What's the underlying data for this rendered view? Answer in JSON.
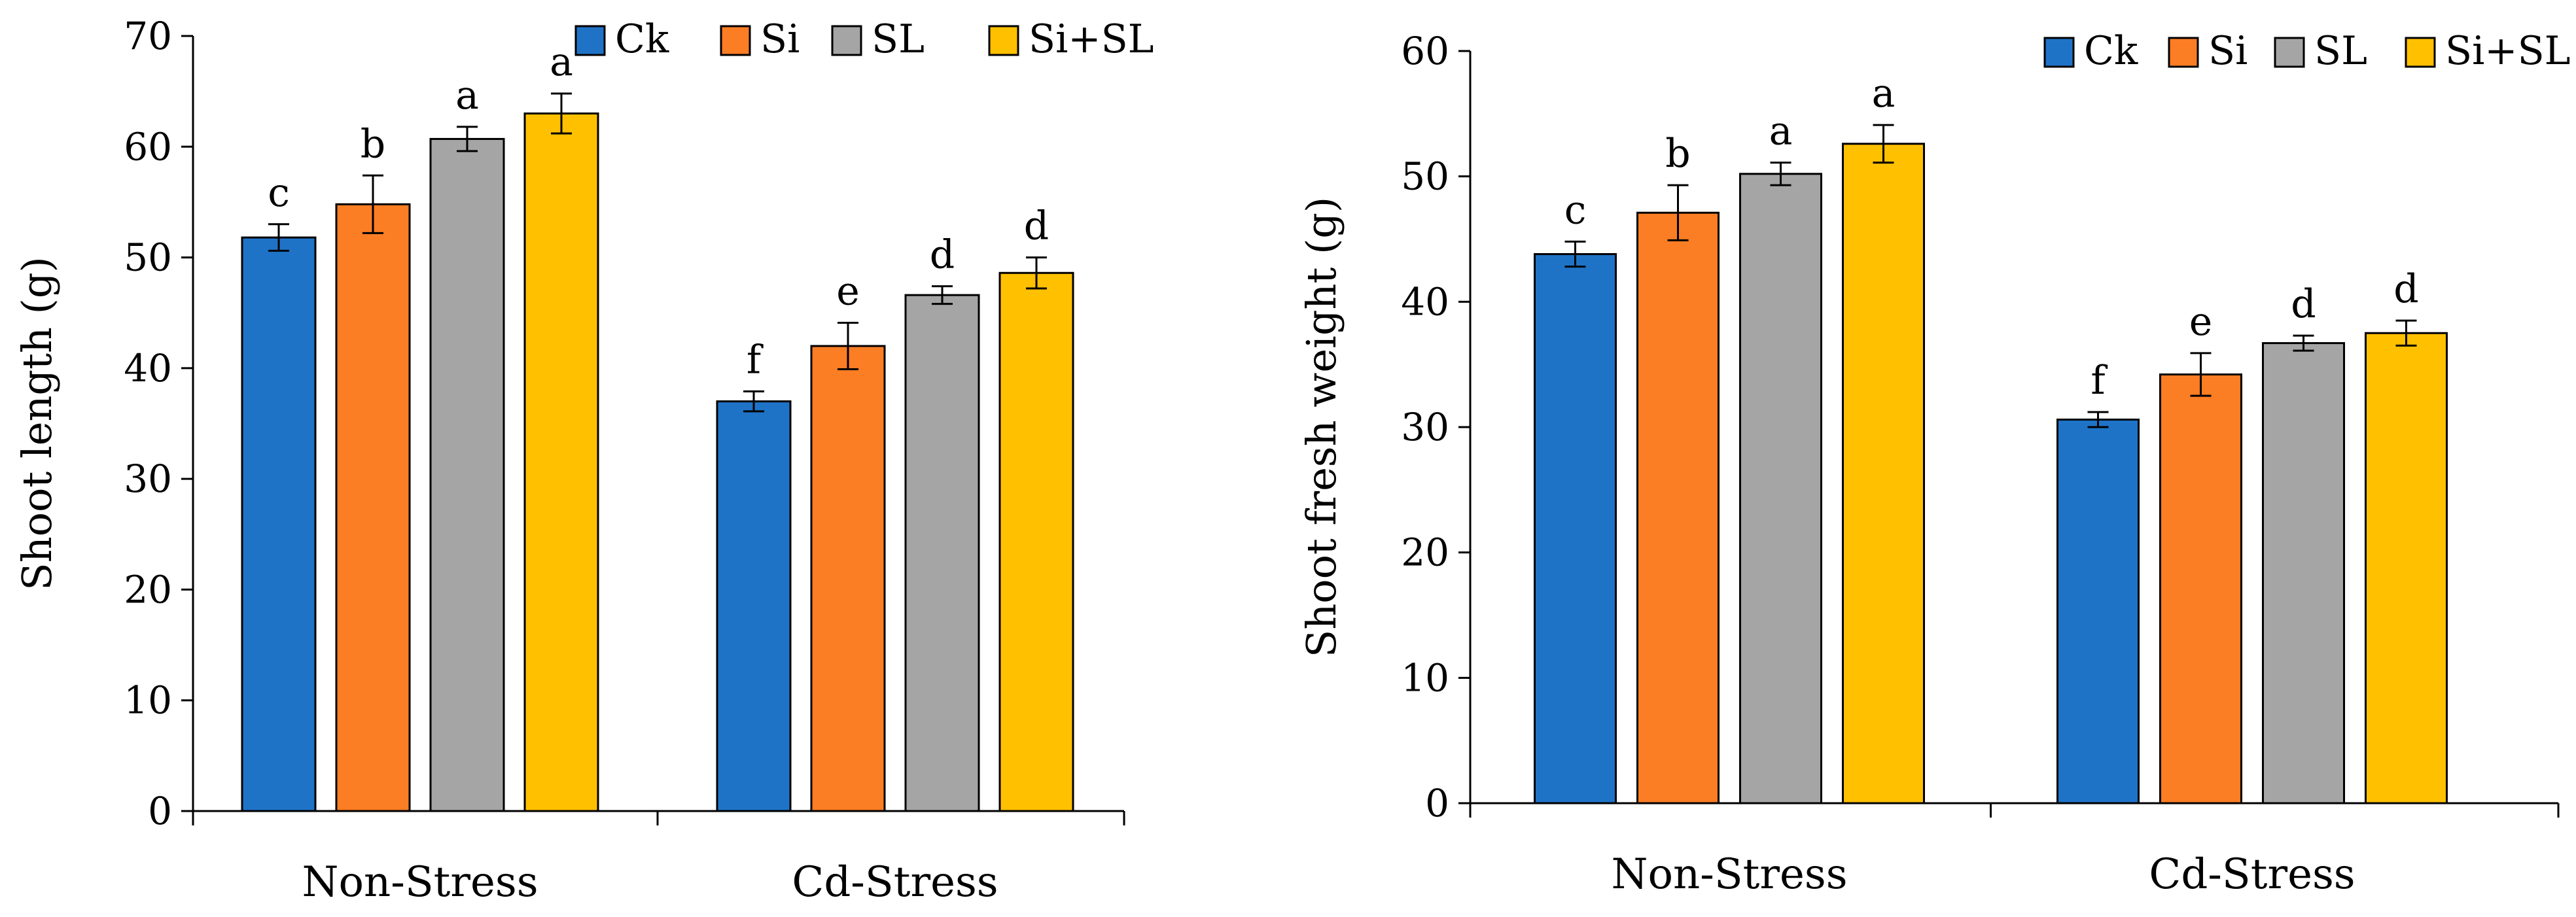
{
  "chart_data": [
    {
      "type": "bar",
      "title": "",
      "xlabel": "",
      "ylabel": "Shoot length (g)",
      "ylim": [
        0,
        70
      ],
      "ytick_step": 10,
      "categories": [
        "Non-Stress",
        "Cd-Stress"
      ],
      "legend": "top-right",
      "series": [
        {
          "name": "Ck",
          "color": "#1f73c7",
          "values": [
            51.8,
            37.0
          ],
          "errors": [
            1.2,
            0.9
          ],
          "labels": [
            "c",
            "f"
          ]
        },
        {
          "name": "Si",
          "color": "#fb7d24",
          "values": [
            54.8,
            42.0
          ],
          "errors": [
            2.6,
            2.1
          ],
          "labels": [
            "b",
            "e"
          ]
        },
        {
          "name": "SL",
          "color": "#a5a5a5",
          "values": [
            60.7,
            46.6
          ],
          "errors": [
            1.1,
            0.8
          ],
          "labels": [
            "a",
            "d"
          ]
        },
        {
          "name": "Si+SL",
          "color": "#ffc000",
          "values": [
            63.0,
            48.6
          ],
          "errors": [
            1.8,
            1.4
          ],
          "labels": [
            "a",
            "d"
          ]
        }
      ]
    },
    {
      "type": "bar",
      "title": "",
      "xlabel": "",
      "ylabel": "Shoot fresh  weight (g)",
      "ylim": [
        0,
        60
      ],
      "ytick_step": 10,
      "categories": [
        "Non-Stress",
        "Cd-Stress"
      ],
      "legend": "top-right",
      "series": [
        {
          "name": "Ck",
          "color": "#1f73c7",
          "values": [
            43.8,
            30.6
          ],
          "errors": [
            1.0,
            0.6
          ],
          "labels": [
            "c",
            "f"
          ]
        },
        {
          "name": "Si",
          "color": "#fb7d24",
          "values": [
            47.1,
            34.2
          ],
          "errors": [
            2.2,
            1.7
          ],
          "labels": [
            "b",
            "e"
          ]
        },
        {
          "name": "SL",
          "color": "#a5a5a5",
          "values": [
            50.2,
            36.7
          ],
          "errors": [
            0.9,
            0.6
          ],
          "labels": [
            "a",
            "d"
          ]
        },
        {
          "name": "Si+SL",
          "color": "#ffc000",
          "values": [
            52.6,
            37.5
          ],
          "errors": [
            1.5,
            1.0
          ],
          "labels": [
            "a",
            "d"
          ]
        }
      ]
    }
  ]
}
